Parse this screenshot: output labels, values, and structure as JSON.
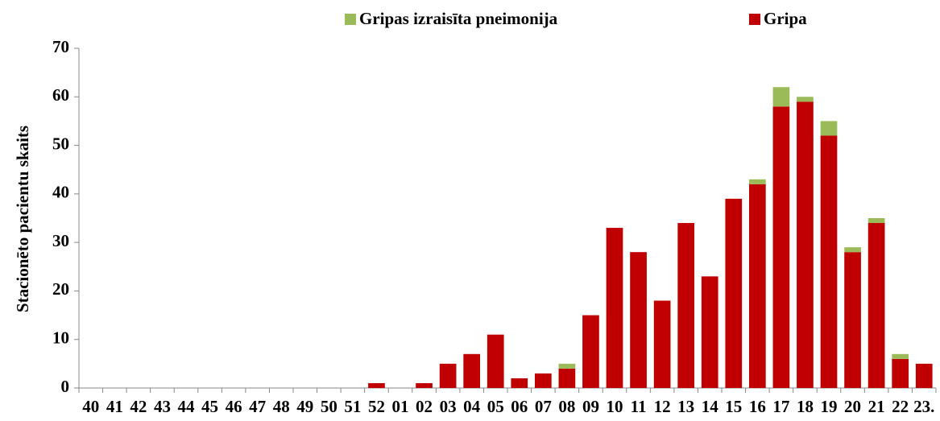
{
  "chart_data": {
    "type": "bar",
    "stacked": true,
    "y_label": "Stacionēto pacientu skaits",
    "categories": [
      "40",
      "41",
      "42",
      "43",
      "44",
      "45",
      "46",
      "47",
      "48",
      "49",
      "50",
      "51",
      "52",
      "01",
      "02",
      "03",
      "04",
      "05",
      "06",
      "07",
      "08",
      "09",
      "10",
      "11",
      "12",
      "13",
      "14",
      "15",
      "16",
      "17",
      "18",
      "19",
      "20",
      "21",
      "22",
      "23."
    ],
    "series": [
      {
        "name": "Gripa",
        "color": "#c00000",
        "values": [
          0,
          0,
          0,
          0,
          0,
          0,
          0,
          0,
          0,
          0,
          0,
          0,
          1,
          0,
          1,
          5,
          7,
          11,
          2,
          3,
          4,
          15,
          33,
          28,
          18,
          34,
          23,
          39,
          42,
          58,
          59,
          52,
          28,
          34,
          6,
          5
        ]
      },
      {
        "name": "Gripas izraisīta pneimonija",
        "color": "#9bbb59",
        "values": [
          0,
          0,
          0,
          0,
          0,
          0,
          0,
          0,
          0,
          0,
          0,
          0,
          0,
          0,
          0,
          0,
          0,
          0,
          0,
          0,
          1,
          0,
          0,
          0,
          0,
          0,
          0,
          0,
          1,
          4,
          1,
          3,
          1,
          1,
          1,
          0
        ]
      }
    ],
    "ylim": [
      0,
      70
    ],
    "yticks": [
      0,
      10,
      20,
      30,
      40,
      50,
      60,
      70
    ],
    "grid": false
  }
}
